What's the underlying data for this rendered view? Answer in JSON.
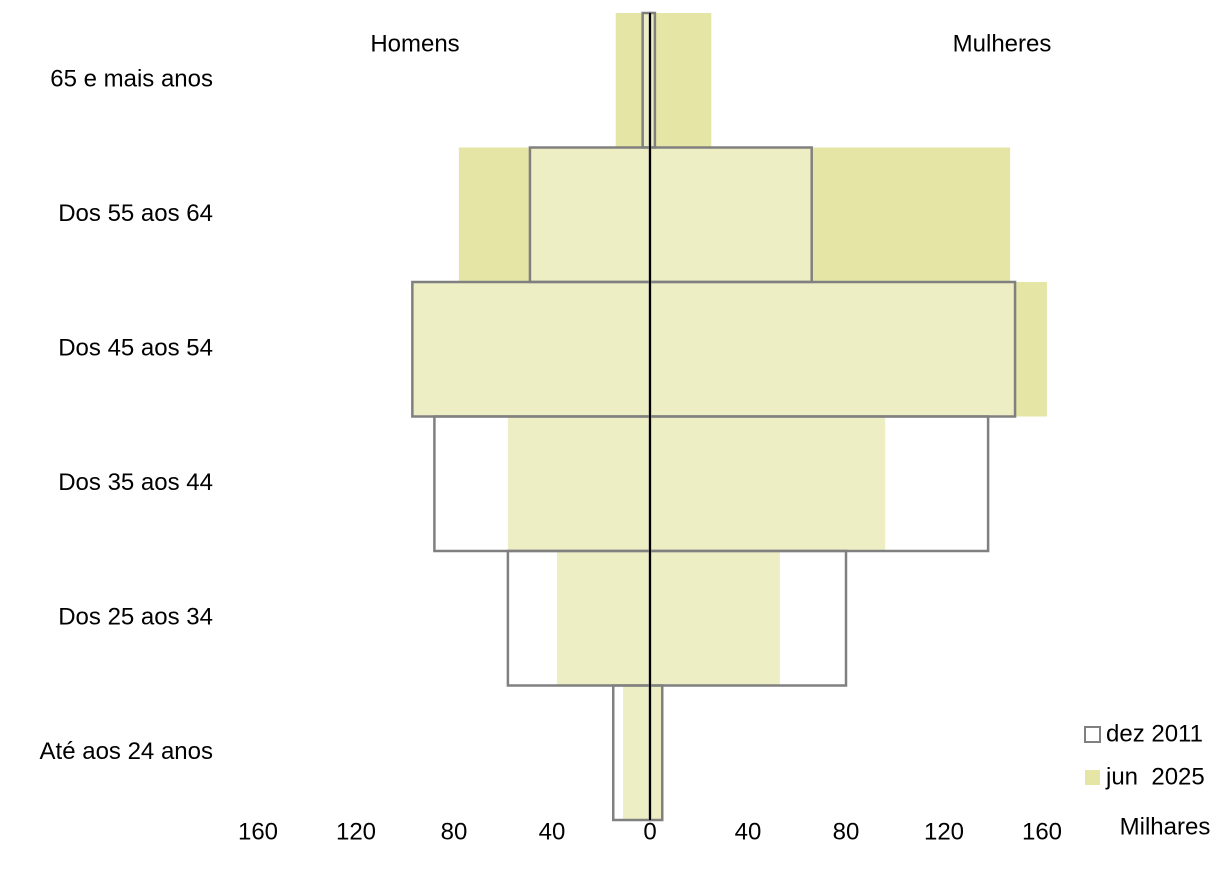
{
  "chart_data": {
    "type": "pyramid",
    "categories": [
      "65 e mais anos",
      "Dos 55 aos 64",
      "Dos 45 aos 54",
      "Dos 35 aos 44",
      "Dos 25 aos 34",
      "Até aos 24 anos"
    ],
    "left_label": "Homens",
    "right_label": "Mulheres",
    "x_label": "Milhares",
    "series": [
      {
        "name": "jun  2025",
        "color": "#e5e5a6",
        "style": "fill",
        "left": [
          -14,
          -78,
          -97,
          -58,
          -38,
          -11
        ],
        "right": [
          25,
          147,
          162,
          96,
          53,
          4.5
        ]
      },
      {
        "name": "dez 2011",
        "color": "#808080",
        "style": "outline",
        "left": [
          -3,
          -49,
          -97,
          -88,
          -58,
          -15
        ],
        "right": [
          2,
          66,
          149,
          138,
          80,
          5
        ]
      }
    ],
    "xlim": [
      -160,
      160
    ],
    "xticks": [
      {
        "value": -160,
        "label": "160"
      },
      {
        "value": -120,
        "label": "120"
      },
      {
        "value": -80,
        "label": "80"
      },
      {
        "value": -40,
        "label": "40"
      },
      0,
      40,
      80,
      120,
      160
    ],
    "legend": "bottom-right"
  }
}
